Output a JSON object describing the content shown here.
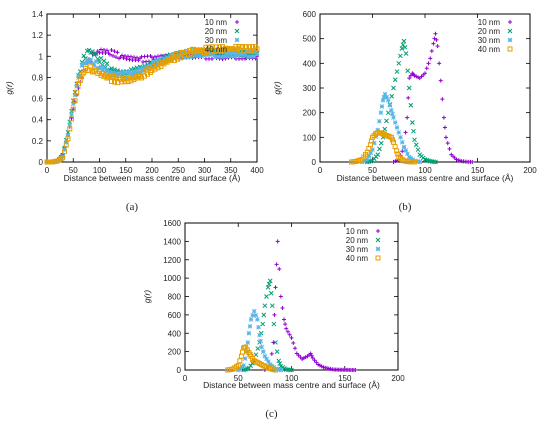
{
  "chart_data": [
    {
      "panel_label": "(a)",
      "type": "scatter",
      "xlabel": "Distance between mass centre and surface (Å)",
      "ylabel": "g(r)",
      "xlim": [
        0,
        400
      ],
      "ylim": [
        0,
        1.4
      ],
      "xticks": [
        "0",
        "50",
        "100",
        "150",
        "200",
        "250",
        "300",
        "350",
        "400"
      ],
      "yticks": [
        "0",
        "0.2",
        "0.4",
        "0.6",
        "0.8",
        "1",
        "1.2",
        "1.4"
      ],
      "legend_position": "top-right",
      "series": [
        {
          "name": "10 nm",
          "color": "#9400d3",
          "marker": "plus",
          "x": [
            0,
            10,
            20,
            30,
            40,
            50,
            60,
            70,
            80,
            90,
            100,
            120,
            140,
            160,
            180,
            200,
            220,
            240,
            260,
            280,
            300,
            320,
            340,
            360,
            380,
            400
          ],
          "y": [
            0,
            0,
            0.02,
            0.08,
            0.25,
            0.5,
            0.7,
            0.85,
            0.95,
            1.02,
            1.05,
            1.04,
            1.0,
            0.98,
            0.97,
            0.98,
            0.99,
            1.0,
            1.01,
            1.0,
            1.0,
            1.0,
            0.99,
            1.0,
            1.0,
            1.0
          ]
        },
        {
          "name": "20 nm",
          "color": "#009e73",
          "marker": "x",
          "x": [
            0,
            10,
            20,
            30,
            40,
            50,
            60,
            70,
            80,
            90,
            100,
            120,
            140,
            160,
            180,
            200,
            220,
            240,
            260,
            280,
            300,
            320,
            340,
            360,
            380,
            400
          ],
          "y": [
            0,
            0,
            0.01,
            0.06,
            0.28,
            0.58,
            0.82,
            0.98,
            1.05,
            1.03,
            0.97,
            0.88,
            0.84,
            0.85,
            0.88,
            0.93,
            0.97,
            1.0,
            1.03,
            1.04,
            1.04,
            1.04,
            1.03,
            1.03,
            1.03,
            1.03
          ]
        },
        {
          "name": "30 nm",
          "color": "#56b4e9",
          "marker": "star",
          "x": [
            0,
            10,
            20,
            30,
            40,
            50,
            60,
            70,
            80,
            90,
            100,
            120,
            140,
            160,
            180,
            200,
            220,
            240,
            260,
            280,
            300,
            320,
            340,
            360,
            380,
            400
          ],
          "y": [
            0,
            0,
            0.01,
            0.05,
            0.25,
            0.55,
            0.8,
            0.93,
            0.96,
            0.94,
            0.9,
            0.84,
            0.82,
            0.83,
            0.87,
            0.92,
            0.96,
            0.99,
            1.01,
            1.02,
            1.02,
            1.02,
            1.02,
            1.02,
            1.02,
            1.02
          ]
        },
        {
          "name": "40 nm",
          "color": "#e69f00",
          "marker": "square",
          "x": [
            0,
            10,
            20,
            30,
            40,
            50,
            60,
            70,
            80,
            90,
            100,
            120,
            140,
            160,
            180,
            200,
            220,
            240,
            260,
            280,
            300,
            320,
            340,
            360,
            380,
            400
          ],
          "y": [
            0,
            0,
            0.01,
            0.04,
            0.22,
            0.5,
            0.74,
            0.86,
            0.89,
            0.87,
            0.84,
            0.79,
            0.77,
            0.78,
            0.82,
            0.88,
            0.93,
            0.98,
            1.02,
            1.05,
            1.06,
            1.07,
            1.07,
            1.07,
            1.07,
            1.07
          ]
        }
      ]
    },
    {
      "panel_label": "(b)",
      "type": "scatter",
      "xlabel": "Distance between mass centre and surface (Å)",
      "ylabel": "g(r)",
      "xlim": [
        0,
        200
      ],
      "ylim": [
        0,
        600
      ],
      "xticks": [
        "0",
        "50",
        "100",
        "150",
        "200"
      ],
      "yticks": [
        "0",
        "100",
        "200",
        "300",
        "400",
        "500",
        "600"
      ],
      "legend_position": "top-right",
      "series": [
        {
          "name": "10 nm",
          "color": "#9400d3",
          "marker": "plus",
          "x": [
            70,
            75,
            80,
            83,
            85,
            88,
            90,
            95,
            100,
            105,
            108,
            110,
            112,
            115,
            118,
            120,
            125,
            130,
            135,
            140,
            145
          ],
          "y": [
            0,
            10,
            60,
            180,
            340,
            360,
            350,
            340,
            360,
            420,
            480,
            520,
            470,
            330,
            180,
            100,
            30,
            10,
            3,
            1,
            0
          ]
        },
        {
          "name": "20 nm",
          "color": "#009e73",
          "marker": "x",
          "x": [
            45,
            50,
            55,
            60,
            65,
            70,
            75,
            78,
            80,
            82,
            85,
            88,
            90,
            95,
            100,
            105,
            110
          ],
          "y": [
            0,
            5,
            30,
            100,
            200,
            300,
            400,
            460,
            490,
            440,
            300,
            160,
            90,
            30,
            10,
            3,
            0
          ]
        },
        {
          "name": "30 nm",
          "color": "#56b4e9",
          "marker": "star",
          "x": [
            40,
            45,
            50,
            55,
            58,
            60,
            62,
            65,
            68,
            70,
            75,
            80,
            85,
            90,
            95
          ],
          "y": [
            0,
            10,
            50,
            130,
            200,
            250,
            275,
            250,
            210,
            180,
            120,
            60,
            20,
            5,
            0
          ]
        },
        {
          "name": "40 nm",
          "color": "#e69f00",
          "marker": "square",
          "x": [
            30,
            35,
            40,
            45,
            48,
            50,
            53,
            55,
            58,
            60,
            62,
            65,
            68,
            70,
            73,
            75,
            80,
            85,
            90
          ],
          "y": [
            0,
            3,
            10,
            40,
            70,
            100,
            115,
            118,
            118,
            115,
            110,
            105,
            100,
            80,
            45,
            20,
            5,
            1,
            0
          ]
        }
      ]
    },
    {
      "panel_label": "(c)",
      "type": "scatter",
      "xlabel": "Distance between mass centre and surface (Å)",
      "ylabel": "g(r)",
      "xlim": [
        0,
        200
      ],
      "ylim": [
        0,
        1600
      ],
      "xticks": [
        "0",
        "50",
        "100",
        "150",
        "200"
      ],
      "yticks": [
        "0",
        "200",
        "400",
        "600",
        "800",
        "1000",
        "1200",
        "1400",
        "1600"
      ],
      "legend_position": "top-right",
      "series": [
        {
          "name": "10 nm",
          "color": "#9400d3",
          "marker": "plus",
          "x": [
            75,
            80,
            83,
            85,
            87,
            90,
            93,
            95,
            100,
            105,
            110,
            115,
            118,
            120,
            125,
            130,
            135,
            140,
            150,
            160
          ],
          "y": [
            0,
            50,
            300,
            900,
            1400,
            800,
            550,
            450,
            350,
            180,
            120,
            150,
            180,
            130,
            60,
            30,
            15,
            5,
            1,
            0
          ]
        },
        {
          "name": "20 nm",
          "color": "#009e73",
          "marker": "x",
          "x": [
            55,
            60,
            65,
            70,
            73,
            75,
            78,
            80,
            82,
            85,
            88,
            90,
            95,
            100
          ],
          "y": [
            0,
            20,
            100,
            300,
            500,
            700,
            900,
            970,
            700,
            300,
            100,
            40,
            5,
            0
          ]
        },
        {
          "name": "30 nm",
          "color": "#56b4e9",
          "marker": "star",
          "x": [
            50,
            55,
            58,
            60,
            62,
            65,
            68,
            70,
            72,
            75,
            80,
            85,
            90
          ],
          "y": [
            0,
            50,
            200,
            400,
            550,
            640,
            550,
            380,
            250,
            150,
            60,
            15,
            0
          ]
        },
        {
          "name": "40 nm",
          "color": "#e69f00",
          "marker": "square",
          "x": [
            40,
            45,
            50,
            53,
            55,
            57,
            60,
            62,
            65,
            70,
            75,
            80,
            85
          ],
          "y": [
            0,
            10,
            50,
            150,
            240,
            250,
            190,
            150,
            100,
            70,
            40,
            15,
            0
          ]
        }
      ]
    }
  ]
}
